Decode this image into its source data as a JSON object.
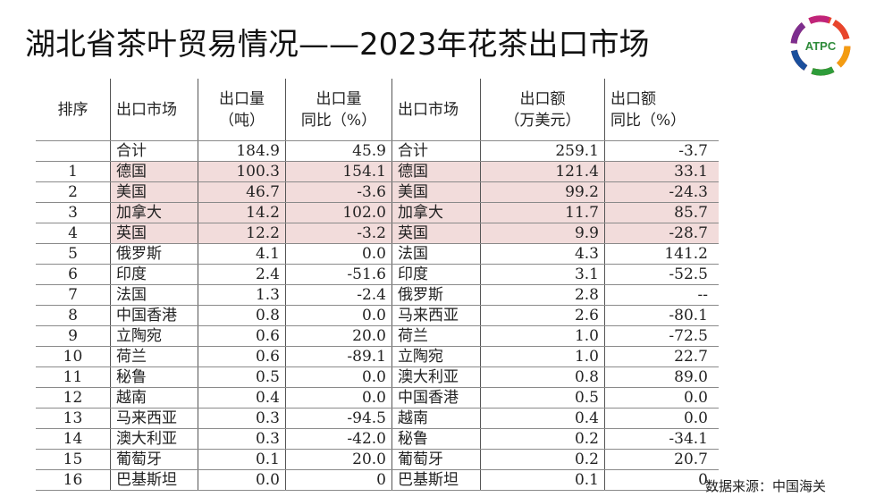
{
  "title": "湖北省茶叶贸易情况——2023年花茶出口市场",
  "logo_text": "ATPC",
  "highlight_color": "#f2dcdb",
  "table": {
    "headers": [
      "排序",
      "出口市场",
      "出口量\n（吨）",
      "出口量\n同比（%）",
      "出口市场",
      "出口额\n（万美元）",
      "出口额\n同比（%）"
    ],
    "rows": [
      {
        "rank": "",
        "vol_market": "合计",
        "volume": "184.9",
        "volume_yoy": "45.9",
        "val_market": "合计",
        "value": "259.1",
        "value_yoy": "-3.7",
        "highlight": false
      },
      {
        "rank": "1",
        "vol_market": "德国",
        "volume": "100.3",
        "volume_yoy": "154.1",
        "val_market": "德国",
        "value": "121.4",
        "value_yoy": "33.1",
        "highlight": true
      },
      {
        "rank": "2",
        "vol_market": "美国",
        "volume": "46.7",
        "volume_yoy": "-3.6",
        "val_market": "美国",
        "value": "99.2",
        "value_yoy": "-24.3",
        "highlight": true
      },
      {
        "rank": "3",
        "vol_market": "加拿大",
        "volume": "14.2",
        "volume_yoy": "102.0",
        "val_market": "加拿大",
        "value": "11.7",
        "value_yoy": "85.7",
        "highlight": true
      },
      {
        "rank": "4",
        "vol_market": "英国",
        "volume": "12.2",
        "volume_yoy": "-3.2",
        "val_market": "英国",
        "value": "9.9",
        "value_yoy": "-28.7",
        "highlight": true
      },
      {
        "rank": "5",
        "vol_market": "俄罗斯",
        "volume": "4.1",
        "volume_yoy": "0.0",
        "val_market": "法国",
        "value": "4.3",
        "value_yoy": "141.2",
        "highlight": false
      },
      {
        "rank": "6",
        "vol_market": "印度",
        "volume": "2.4",
        "volume_yoy": "-51.6",
        "val_market": "印度",
        "value": "3.1",
        "value_yoy": "-52.5",
        "highlight": false
      },
      {
        "rank": "7",
        "vol_market": "法国",
        "volume": "1.3",
        "volume_yoy": "-2.4",
        "val_market": "俄罗斯",
        "value": "2.8",
        "value_yoy": "--",
        "highlight": false
      },
      {
        "rank": "8",
        "vol_market": "中国香港",
        "volume": "0.8",
        "volume_yoy": "0.0",
        "val_market": "马来西亚",
        "value": "2.6",
        "value_yoy": "-80.1",
        "highlight": false
      },
      {
        "rank": "9",
        "vol_market": "立陶宛",
        "volume": "0.6",
        "volume_yoy": "20.0",
        "val_market": "荷兰",
        "value": "1.0",
        "value_yoy": "-72.5",
        "highlight": false
      },
      {
        "rank": "10",
        "vol_market": "荷兰",
        "volume": "0.6",
        "volume_yoy": "-89.1",
        "val_market": "立陶宛",
        "value": "1.0",
        "value_yoy": "22.7",
        "highlight": false
      },
      {
        "rank": "11",
        "vol_market": "秘鲁",
        "volume": "0.5",
        "volume_yoy": "0.0",
        "val_market": "澳大利亚",
        "value": "0.8",
        "value_yoy": "89.0",
        "highlight": false
      },
      {
        "rank": "12",
        "vol_market": "越南",
        "volume": "0.4",
        "volume_yoy": "0.0",
        "val_market": "中国香港",
        "value": "0.5",
        "value_yoy": "0.0",
        "highlight": false
      },
      {
        "rank": "13",
        "vol_market": "马来西亚",
        "volume": "0.3",
        "volume_yoy": "-94.5",
        "val_market": "越南",
        "value": "0.4",
        "value_yoy": "0.0",
        "highlight": false
      },
      {
        "rank": "14",
        "vol_market": "澳大利亚",
        "volume": "0.3",
        "volume_yoy": "-42.0",
        "val_market": "秘鲁",
        "value": "0.2",
        "value_yoy": "-34.1",
        "highlight": false
      },
      {
        "rank": "15",
        "vol_market": "葡萄牙",
        "volume": "0.1",
        "volume_yoy": "20.0",
        "val_market": "葡萄牙",
        "value": "0.2",
        "value_yoy": "20.7",
        "highlight": false
      },
      {
        "rank": "16",
        "vol_market": "巴基斯坦",
        "volume": "0.0",
        "volume_yoy": "0",
        "val_market": "巴基斯坦",
        "value": "0.1",
        "value_yoy": "0",
        "highlight": false
      }
    ]
  },
  "source": "数据来源：中国海关"
}
